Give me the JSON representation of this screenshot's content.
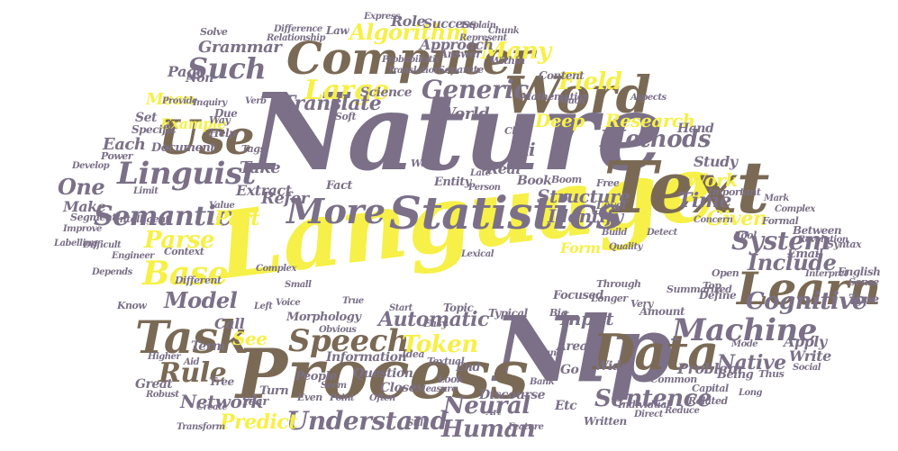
{
  "palette": {
    "slate": "#7b7088",
    "brown": "#7a6a55",
    "yellow": "#f6f048"
  },
  "words": [
    {
      "text": "Nature",
      "color": "slate"
    },
    {
      "text": "Language",
      "color": "yellow"
    },
    {
      "text": "Nlp",
      "color": "slate"
    },
    {
      "text": "Process",
      "color": "brown"
    },
    {
      "text": "Text",
      "color": "brown"
    },
    {
      "text": "Word",
      "color": "brown"
    },
    {
      "text": "Computer",
      "color": "brown"
    },
    {
      "text": "Statistics",
      "color": "slate"
    },
    {
      "text": "Data",
      "color": "brown"
    },
    {
      "text": "Learn",
      "color": "brown"
    },
    {
      "text": "Task",
      "color": "brown"
    },
    {
      "text": "Use",
      "color": "brown"
    },
    {
      "text": "Speech",
      "color": "brown"
    },
    {
      "text": "Machine",
      "color": "slate"
    },
    {
      "text": "Linguist",
      "color": "slate"
    },
    {
      "text": "More",
      "color": "slate"
    },
    {
      "text": "Base",
      "color": "yellow"
    },
    {
      "text": "Such",
      "color": "slate"
    },
    {
      "text": "Semantic",
      "color": "slate"
    },
    {
      "text": "Understand",
      "color": "slate"
    },
    {
      "text": "Human",
      "color": "slate"
    },
    {
      "text": "System",
      "color": "slate"
    },
    {
      "text": "Include",
      "color": "slate"
    },
    {
      "text": "Model",
      "color": "slate"
    },
    {
      "text": "Rule",
      "color": "brown"
    },
    {
      "text": "Sentence",
      "color": "slate"
    },
    {
      "text": "Methods",
      "color": "slate"
    },
    {
      "text": "Large",
      "color": "yellow"
    },
    {
      "text": "Generic",
      "color": "slate"
    },
    {
      "text": "Algorithm",
      "color": "yellow"
    },
    {
      "text": "Many",
      "color": "yellow"
    },
    {
      "text": "Translate",
      "color": "slate"
    },
    {
      "text": "Parse",
      "color": "yellow"
    },
    {
      "text": "Token",
      "color": "yellow"
    },
    {
      "text": "Neural",
      "color": "slate"
    },
    {
      "text": "Cognitive",
      "color": "slate"
    },
    {
      "text": "Network",
      "color": "slate"
    },
    {
      "text": "Predict",
      "color": "yellow"
    },
    {
      "text": "Automatic",
      "color": "slate"
    },
    {
      "text": "Field",
      "color": "yellow"
    },
    {
      "text": "Research",
      "color": "yellow"
    },
    {
      "text": "Deep",
      "color": "yellow"
    },
    {
      "text": "Structure",
      "color": "slate"
    },
    {
      "text": "Identify",
      "color": "slate"
    },
    {
      "text": "Time",
      "color": "slate"
    },
    {
      "text": "Work",
      "color": "yellow"
    },
    {
      "text": "Given",
      "color": "yellow"
    },
    {
      "text": "Input",
      "color": "slate"
    },
    {
      "text": "Mean",
      "color": "yellow"
    },
    {
      "text": "Example",
      "color": "yellow"
    },
    {
      "text": "Each",
      "color": "slate"
    },
    {
      "text": "One",
      "color": "slate"
    },
    {
      "text": "Part",
      "color": "yellow"
    },
    {
      "text": "Refer",
      "color": "slate"
    },
    {
      "text": "Take",
      "color": "slate"
    },
    {
      "text": "Grammar",
      "color": "slate"
    },
    {
      "text": "World",
      "color": "slate"
    },
    {
      "text": "Science",
      "color": "slate"
    },
    {
      "text": "Information",
      "color": "slate"
    },
    {
      "text": "Question",
      "color": "slate"
    },
    {
      "text": "Morphology",
      "color": "slate"
    },
    {
      "text": "Problem",
      "color": "slate"
    },
    {
      "text": "Apply",
      "color": "slate"
    },
    {
      "text": "Write",
      "color": "slate"
    },
    {
      "text": "Type",
      "color": "slate"
    },
    {
      "text": "Approach",
      "color": "slate"
    },
    {
      "text": "Answer",
      "color": "slate"
    },
    {
      "text": "Content",
      "color": "slate"
    },
    {
      "text": "Document",
      "color": "slate"
    },
    {
      "text": "Page",
      "color": "slate"
    },
    {
      "text": "Set",
      "color": "slate"
    },
    {
      "text": "Specific",
      "color": "slate"
    },
    {
      "text": "Make",
      "color": "slate"
    },
    {
      "text": "Extract",
      "color": "slate"
    },
    {
      "text": "Fact",
      "color": "slate"
    },
    {
      "text": "Entity",
      "color": "slate"
    },
    {
      "text": "Real",
      "color": "slate"
    },
    {
      "text": "Book",
      "color": "slate"
    },
    {
      "text": "Study",
      "color": "slate"
    },
    {
      "text": "Level",
      "color": "slate"
    },
    {
      "text": "Form",
      "color": "yellow"
    },
    {
      "text": "Focused",
      "color": "slate"
    },
    {
      "text": "Typical",
      "color": "slate"
    },
    {
      "text": "Amount",
      "color": "slate"
    },
    {
      "text": "Define",
      "color": "slate"
    },
    {
      "text": "Email",
      "color": "slate"
    },
    {
      "text": "English",
      "color": "slate"
    },
    {
      "text": "Between",
      "color": "slate"
    },
    {
      "text": "Call",
      "color": "slate"
    },
    {
      "text": "See",
      "color": "yellow"
    },
    {
      "text": "Term",
      "color": "slate"
    },
    {
      "text": "Tree",
      "color": "slate"
    },
    {
      "text": "Year",
      "color": "slate"
    },
    {
      "text": "Turn",
      "color": "slate"
    },
    {
      "text": "Close",
      "color": "slate"
    },
    {
      "text": "People",
      "color": "slate"
    },
    {
      "text": "Great",
      "color": "slate"
    },
    {
      "text": "End",
      "color": "slate"
    },
    {
      "text": "Etc",
      "color": "slate"
    },
    {
      "text": "Written",
      "color": "slate"
    },
    {
      "text": "Wide",
      "color": "slate"
    },
    {
      "text": "Native",
      "color": "slate"
    },
    {
      "text": "Being",
      "color": "slate"
    },
    {
      "text": "Context",
      "color": "slate"
    },
    {
      "text": "Different",
      "color": "slate"
    },
    {
      "text": "Segment",
      "color": "slate"
    },
    {
      "text": "Intelligent",
      "color": "slate"
    },
    {
      "text": "Labelling",
      "color": "slate"
    },
    {
      "text": "Improve",
      "color": "slate"
    },
    {
      "text": "Complex",
      "color": "slate"
    },
    {
      "text": "Voice",
      "color": "slate"
    },
    {
      "text": "Start",
      "color": "slate"
    },
    {
      "text": "True",
      "color": "slate"
    },
    {
      "text": "Ai",
      "color": "slate"
    },
    {
      "text": "Clip",
      "color": "slate"
    },
    {
      "text": "Free",
      "color": "slate"
    },
    {
      "text": "Very",
      "color": "slate"
    },
    {
      "text": "Summarized",
      "color": "slate"
    },
    {
      "text": "Tool",
      "color": "slate"
    },
    {
      "text": "Open",
      "color": "slate"
    },
    {
      "text": "Top",
      "color": "slate"
    },
    {
      "text": "Hand",
      "color": "slate"
    },
    {
      "text": "Mathematics",
      "color": "slate"
    },
    {
      "text": "Much",
      "color": "slate"
    },
    {
      "text": "Boom",
      "color": "slate"
    },
    {
      "text": "Success",
      "color": "slate"
    },
    {
      "text": "Role",
      "color": "slate"
    },
    {
      "text": "Express",
      "color": "slate"
    },
    {
      "text": "Chunk",
      "color": "slate"
    },
    {
      "text": "Explain",
      "color": "slate"
    },
    {
      "text": "Within",
      "color": "slate"
    },
    {
      "text": "Separate",
      "color": "slate"
    },
    {
      "text": "Probabilistic",
      "color": "slate"
    },
    {
      "text": "Relationship",
      "color": "slate"
    },
    {
      "text": "Law",
      "color": "slate"
    },
    {
      "text": "Non",
      "color": "slate"
    },
    {
      "text": "Solve",
      "color": "slate"
    },
    {
      "text": "Due",
      "color": "slate"
    },
    {
      "text": "Soft",
      "color": "slate"
    },
    {
      "text": "Big",
      "color": "slate"
    },
    {
      "text": "Important",
      "color": "slate"
    },
    {
      "text": "Sense",
      "color": "slate"
    },
    {
      "text": "Syntax",
      "color": "slate"
    },
    {
      "text": "Formal",
      "color": "slate"
    },
    {
      "text": "Mark",
      "color": "slate"
    },
    {
      "text": "Power",
      "color": "slate"
    },
    {
      "text": "Develop",
      "color": "slate"
    },
    {
      "text": "Limit",
      "color": "slate"
    },
    {
      "text": "Value",
      "color": "slate"
    },
    {
      "text": "Help",
      "color": "slate"
    },
    {
      "text": "Way",
      "color": "slate"
    },
    {
      "text": "Tags",
      "color": "slate"
    },
    {
      "text": "Late",
      "color": "slate"
    },
    {
      "text": "Web",
      "color": "slate"
    },
    {
      "text": "Person",
      "color": "slate"
    },
    {
      "text": "Lexical",
      "color": "slate"
    },
    {
      "text": "Build",
      "color": "slate"
    },
    {
      "text": "Detect",
      "color": "slate"
    },
    {
      "text": "Textual",
      "color": "slate"
    },
    {
      "text": "Idea",
      "color": "slate"
    },
    {
      "text": "Easy",
      "color": "slate"
    },
    {
      "text": "Discourse",
      "color": "slate"
    },
    {
      "text": "Look",
      "color": "slate"
    },
    {
      "text": "Longer",
      "color": "slate"
    },
    {
      "text": "Through",
      "color": "slate"
    },
    {
      "text": "Common",
      "color": "slate"
    },
    {
      "text": "Capital",
      "color": "slate"
    },
    {
      "text": "Thus",
      "color": "slate"
    },
    {
      "text": "Related",
      "color": "slate"
    },
    {
      "text": "Social",
      "color": "slate"
    },
    {
      "text": "Reduce",
      "color": "slate"
    },
    {
      "text": "Direct",
      "color": "slate"
    },
    {
      "text": "Long",
      "color": "slate"
    },
    {
      "text": "Individual",
      "color": "slate"
    },
    {
      "text": "Feature",
      "color": "slate"
    },
    {
      "text": "Still",
      "color": "slate"
    },
    {
      "text": "Higher",
      "color": "slate"
    },
    {
      "text": "Robust",
      "color": "slate"
    },
    {
      "text": "Create",
      "color": "slate"
    },
    {
      "text": "Even",
      "color": "slate"
    },
    {
      "text": "Transform",
      "color": "slate"
    },
    {
      "text": "Point",
      "color": "slate"
    },
    {
      "text": "Seem",
      "color": "slate"
    },
    {
      "text": "Obvious",
      "color": "slate"
    },
    {
      "text": "Often",
      "color": "slate"
    },
    {
      "text": "Left",
      "color": "slate"
    },
    {
      "text": "Small",
      "color": "slate"
    },
    {
      "text": "Topic",
      "color": "slate"
    },
    {
      "text": "Brand",
      "color": "slate"
    },
    {
      "text": "Bank",
      "color": "slate"
    },
    {
      "text": "Area",
      "color": "slate"
    },
    {
      "text": "Go",
      "color": "slate"
    },
    {
      "text": "Know",
      "color": "slate"
    },
    {
      "text": "Art",
      "color": "slate"
    },
    {
      "text": "Aid",
      "color": "slate"
    },
    {
      "text": "Measure",
      "color": "slate"
    },
    {
      "text": "Difference",
      "color": "slate"
    },
    {
      "text": "Verb",
      "color": "slate"
    },
    {
      "text": "Translation",
      "color": "slate"
    },
    {
      "text": "Represent",
      "color": "slate"
    },
    {
      "text": "Aspects",
      "color": "slate"
    },
    {
      "text": "Engineer",
      "color": "slate"
    },
    {
      "text": "Complex",
      "color": "slate"
    },
    {
      "text": "Concern",
      "color": "slate"
    },
    {
      "text": "Mode",
      "color": "slate"
    },
    {
      "text": "Provide",
      "color": "slate"
    },
    {
      "text": "Inquiry",
      "color": "slate"
    },
    {
      "text": "Revolution",
      "color": "slate"
    },
    {
      "text": "Interpret",
      "color": "slate"
    },
    {
      "text": "Difficult",
      "color": "slate"
    },
    {
      "text": "Depends",
      "color": "slate"
    },
    {
      "text": "Quality",
      "color": "slate"
    },
    {
      "text": "Summary",
      "color": "slate"
    }
  ]
}
